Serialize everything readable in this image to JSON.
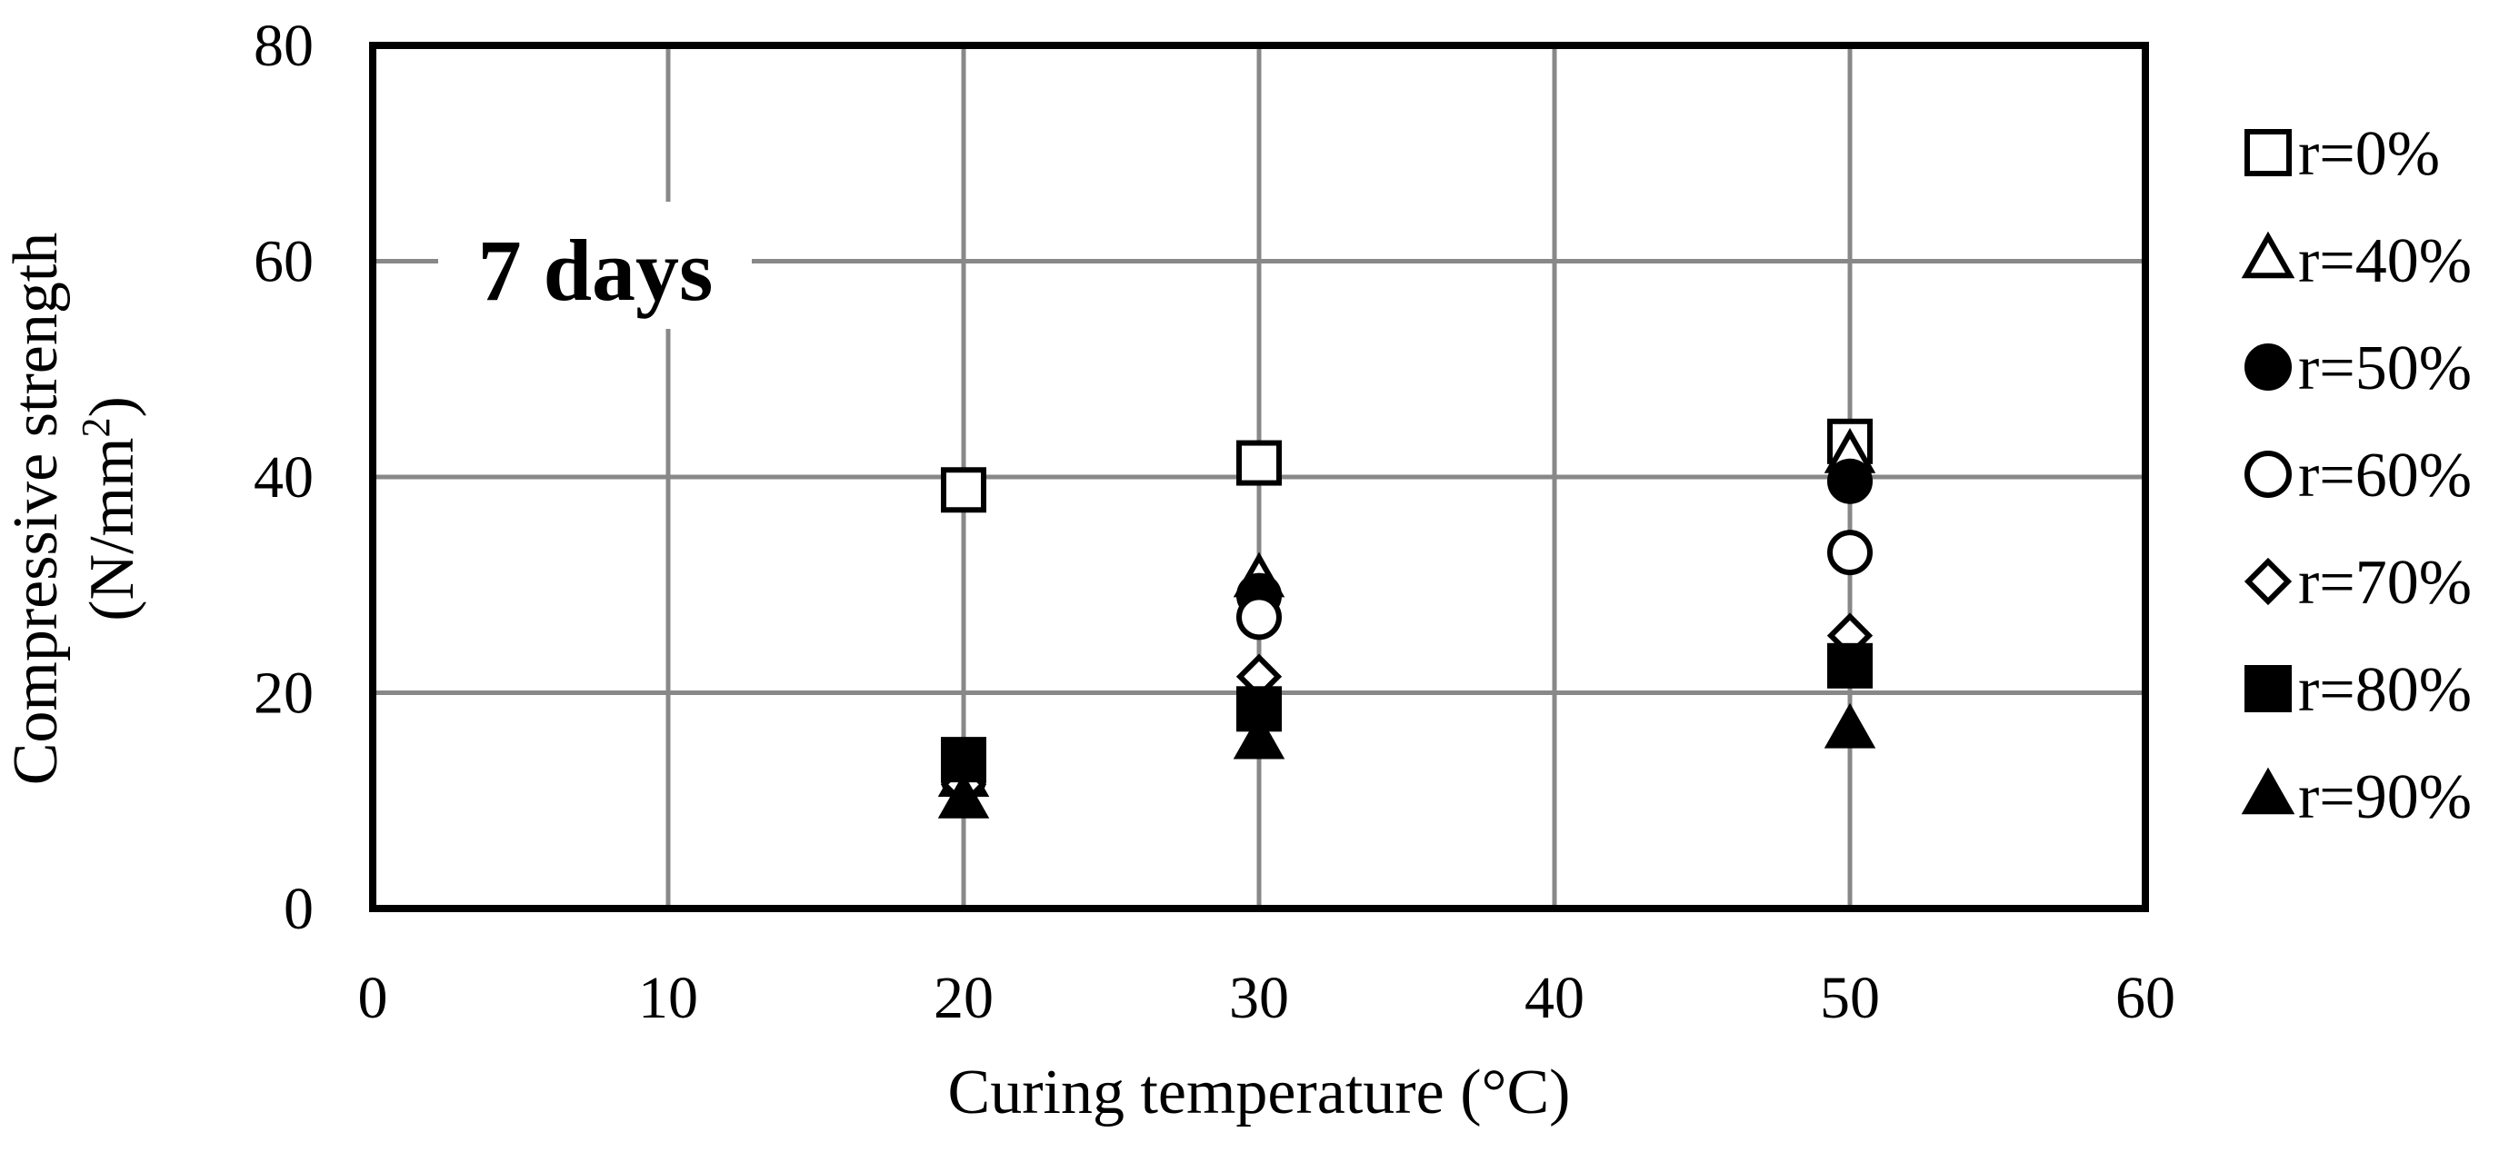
{
  "chart_data": {
    "type": "scatter",
    "annotation": "7 days",
    "xlabel": "Curing temperature (°C)",
    "ylabel_line1": "Compressive strength",
    "ylabel_line2_main": "(N/mm",
    "ylabel_line2_sup": "2",
    "ylabel_line2_end": ")",
    "xlim": [
      0,
      60
    ],
    "ylim": [
      0,
      80
    ],
    "x_ticks": [
      0,
      10,
      20,
      30,
      40,
      50,
      60
    ],
    "y_ticks": [
      0,
      20,
      40,
      60,
      80
    ],
    "x_tick_labels": [
      "0",
      "10",
      "20",
      "30",
      "40",
      "50",
      "60"
    ],
    "y_tick_labels": [
      "0",
      "20",
      "40",
      "60",
      "80"
    ],
    "grid": true,
    "legend_position": "right",
    "series": [
      {
        "name": "r=0%",
        "marker": "square-open",
        "x": [
          20,
          30,
          50
        ],
        "y": [
          38.8,
          41.3,
          43.3
        ]
      },
      {
        "name": "r=40%",
        "marker": "triangle-open",
        "x": [
          20,
          30,
          50
        ],
        "y": [
          12.0,
          30.5,
          42.0
        ]
      },
      {
        "name": "r=50%",
        "marker": "circle-filled",
        "x": [
          20,
          30,
          50
        ],
        "y": [
          12.0,
          29.0,
          39.6
        ]
      },
      {
        "name": "r=60%",
        "marker": "circle-open",
        "x": [
          20,
          30,
          50
        ],
        "y": [
          12.0,
          27.0,
          33.0
        ]
      },
      {
        "name": "r=70%",
        "marker": "diamond-open",
        "x": [
          20,
          30,
          50
        ],
        "y": [
          11.5,
          21.5,
          25.3
        ]
      },
      {
        "name": "r=80%",
        "marker": "square-filled",
        "x": [
          20,
          30,
          50
        ],
        "y": [
          13.8,
          18.5,
          22.5
        ]
      },
      {
        "name": "r=90%",
        "marker": "triangle-filled",
        "x": [
          20,
          30,
          50
        ],
        "y": [
          10.0,
          15.5,
          16.5
        ]
      }
    ]
  }
}
